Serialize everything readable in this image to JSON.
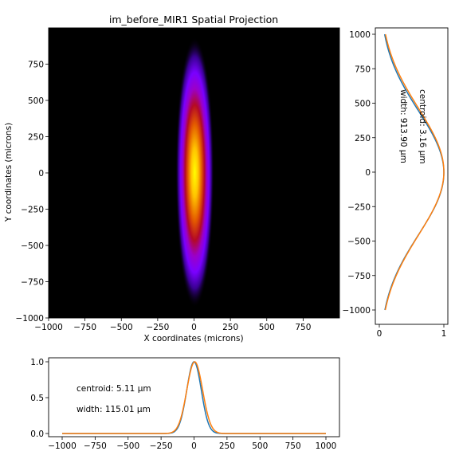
{
  "chart_data": [
    {
      "type": "heatmap",
      "title": "im_before_MIR1 Spatial Projection",
      "xlabel": "X coordinates (microns)",
      "ylabel": "Y coordinates (microns)",
      "xlim": [
        -1000,
        1000
      ],
      "ylim": [
        -1000,
        1000
      ],
      "xticks": [
        -1000,
        -750,
        -500,
        -250,
        0,
        250,
        500,
        750
      ],
      "yticks": [
        -1000,
        -750,
        -500,
        -250,
        0,
        250,
        500,
        750
      ],
      "x_tick_labels": [
        "−1000",
        "−750",
        "−500",
        "−250",
        "0",
        "250",
        "500",
        "750"
      ],
      "y_tick_labels": [
        "−1000",
        "−750",
        "−500",
        "−250",
        "0",
        "250",
        "500",
        "750"
      ],
      "colormap": "gnuplot",
      "beam": {
        "x_centroid": 5.11,
        "x_width": 115.01,
        "y_centroid": 3.16,
        "y_width": 913.9
      },
      "grid": false
    },
    {
      "type": "line",
      "orientation": "vertical",
      "xlim": [
        0,
        1
      ],
      "ylim": [
        -1000,
        1000
      ],
      "xticks": [
        0,
        1
      ],
      "yticks": [
        -1000,
        -750,
        -500,
        -250,
        0,
        250,
        500,
        750,
        1000
      ],
      "x_tick_labels": [
        "0",
        "1"
      ],
      "y_tick_labels": [
        "−1000",
        "−750",
        "−500",
        "−250",
        "0",
        "250",
        "500",
        "750",
        "1000"
      ],
      "series": [
        {
          "color": "#1f77b4",
          "centroid": -5,
          "sigma": 900
        },
        {
          "color": "#ff7f0e",
          "centroid": 3.16,
          "sigma": 920
        }
      ],
      "annotations": [
        "centroid: 3.16 μm",
        "width: 913.90 μm"
      ]
    },
    {
      "type": "line",
      "xlim": [
        -1000,
        1000
      ],
      "ylim": [
        0,
        1
      ],
      "xticks": [
        -1000,
        -750,
        -500,
        -250,
        0,
        250,
        500,
        750,
        1000
      ],
      "yticks": [
        0.0,
        0.5,
        1.0
      ],
      "x_tick_labels": [
        "−1000",
        "−750",
        "−500",
        "−250",
        "0",
        "250",
        "500",
        "750",
        "1000"
      ],
      "y_tick_labels": [
        "0.0",
        "0.5",
        "1.0"
      ],
      "series": [
        {
          "color": "#1f77b4",
          "centroid": 0,
          "sigma": 55
        },
        {
          "color": "#ff7f0e",
          "centroid": 5.11,
          "sigma": 60
        }
      ],
      "annotations": [
        "centroid: 5.11 μm",
        "width: 115.01 μm"
      ]
    }
  ]
}
